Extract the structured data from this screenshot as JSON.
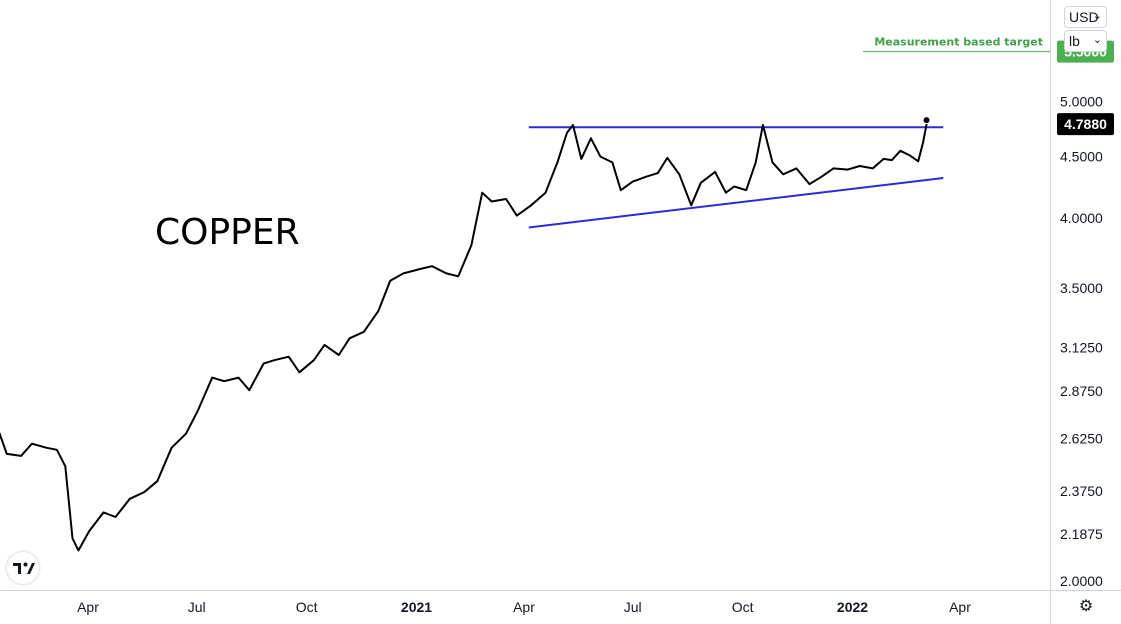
{
  "chart_data": {
    "type": "line",
    "title": "COPPER",
    "y_scale": "log",
    "ylim": [
      2.0,
      5.65
    ],
    "y_ticks": [
      "2.0000",
      "2.1875",
      "2.3750",
      "2.6250",
      "2.8750",
      "3.1250",
      "3.5000",
      "4.0000",
      "4.5000",
      "5.0000"
    ],
    "x_ticks": [
      {
        "label": "Apr",
        "bold": false
      },
      {
        "label": "Jul",
        "bold": false
      },
      {
        "label": "Oct",
        "bold": false
      },
      {
        "label": "2021",
        "bold": true
      },
      {
        "label": "Apr",
        "bold": false
      },
      {
        "label": "Jul",
        "bold": false
      },
      {
        "label": "Oct",
        "bold": false
      },
      {
        "label": "2022",
        "bold": true
      },
      {
        "label": "Apr",
        "bold": false
      }
    ],
    "last_value": "4.7880",
    "target_value": "5.5000",
    "target_label": "Measurement based target",
    "series": [
      {
        "color": "#000000",
        "points": [
          [
            "2020-01-02",
            2.86
          ],
          [
            "2020-01-14",
            2.72
          ],
          [
            "2020-01-24",
            2.55
          ],
          [
            "2020-02-05",
            2.54
          ],
          [
            "2020-02-14",
            2.6
          ],
          [
            "2020-02-26",
            2.58
          ],
          [
            "2020-03-06",
            2.57
          ],
          [
            "2020-03-13",
            2.49
          ],
          [
            "2020-03-19",
            2.17
          ],
          [
            "2020-03-24",
            2.12
          ],
          [
            "2020-04-02",
            2.2
          ],
          [
            "2020-04-14",
            2.28
          ],
          [
            "2020-04-24",
            2.26
          ],
          [
            "2020-05-06",
            2.34
          ],
          [
            "2020-05-18",
            2.37
          ],
          [
            "2020-05-29",
            2.42
          ],
          [
            "2020-06-10",
            2.58
          ],
          [
            "2020-06-22",
            2.65
          ],
          [
            "2020-07-02",
            2.77
          ],
          [
            "2020-07-14",
            2.95
          ],
          [
            "2020-07-24",
            2.93
          ],
          [
            "2020-08-05",
            2.95
          ],
          [
            "2020-08-14",
            2.88
          ],
          [
            "2020-08-26",
            3.03
          ],
          [
            "2020-09-04",
            3.05
          ],
          [
            "2020-09-16",
            3.07
          ],
          [
            "2020-09-25",
            2.98
          ],
          [
            "2020-10-07",
            3.05
          ],
          [
            "2020-10-16",
            3.14
          ],
          [
            "2020-10-28",
            3.08
          ],
          [
            "2020-11-06",
            3.18
          ],
          [
            "2020-11-18",
            3.22
          ],
          [
            "2020-11-30",
            3.35
          ],
          [
            "2020-12-10",
            3.55
          ],
          [
            "2020-12-21",
            3.6
          ],
          [
            "2021-01-04",
            3.63
          ],
          [
            "2021-01-14",
            3.65
          ],
          [
            "2021-01-26",
            3.6
          ],
          [
            "2021-02-05",
            3.58
          ],
          [
            "2021-02-16",
            3.8
          ],
          [
            "2021-02-25",
            4.2
          ],
          [
            "2021-03-05",
            4.13
          ],
          [
            "2021-03-17",
            4.15
          ],
          [
            "2021-03-26",
            4.02
          ],
          [
            "2021-04-07",
            4.1
          ],
          [
            "2021-04-19",
            4.2
          ],
          [
            "2021-04-29",
            4.45
          ],
          [
            "2021-05-07",
            4.71
          ],
          [
            "2021-05-12",
            4.78
          ],
          [
            "2021-05-19",
            4.48
          ],
          [
            "2021-05-27",
            4.66
          ],
          [
            "2021-06-04",
            4.5
          ],
          [
            "2021-06-14",
            4.45
          ],
          [
            "2021-06-21",
            4.22
          ],
          [
            "2021-07-01",
            4.29
          ],
          [
            "2021-07-12",
            4.33
          ],
          [
            "2021-07-22",
            4.36
          ],
          [
            "2021-07-30",
            4.49
          ],
          [
            "2021-08-09",
            4.35
          ],
          [
            "2021-08-19",
            4.1
          ],
          [
            "2021-08-27",
            4.28
          ],
          [
            "2021-09-08",
            4.37
          ],
          [
            "2021-09-17",
            4.2
          ],
          [
            "2021-09-24",
            4.25
          ],
          [
            "2021-10-04",
            4.22
          ],
          [
            "2021-10-12",
            4.45
          ],
          [
            "2021-10-18",
            4.78
          ],
          [
            "2021-10-26",
            4.45
          ],
          [
            "2021-11-04",
            4.35
          ],
          [
            "2021-11-15",
            4.4
          ],
          [
            "2021-11-26",
            4.27
          ],
          [
            "2021-12-06",
            4.33
          ],
          [
            "2021-12-16",
            4.4
          ],
          [
            "2021-12-28",
            4.39
          ],
          [
            "2022-01-07",
            4.42
          ],
          [
            "2022-01-18",
            4.4
          ],
          [
            "2022-01-27",
            4.48
          ],
          [
            "2022-02-03",
            4.47
          ],
          [
            "2022-02-10",
            4.55
          ],
          [
            "2022-02-18",
            4.51
          ],
          [
            "2022-02-25",
            4.46
          ],
          [
            "2022-03-01",
            4.62
          ],
          [
            "2022-03-04",
            4.788
          ]
        ]
      }
    ],
    "trendlines": [
      {
        "name": "resistance",
        "color": "#2d2bd8",
        "points": [
          [
            "2021-04-05",
            4.76
          ],
          [
            "2022-03-18",
            4.76
          ]
        ]
      },
      {
        "name": "support",
        "color": "#2d2bd8",
        "points": [
          [
            "2021-04-05",
            3.93
          ],
          [
            "2022-03-18",
            4.32
          ]
        ]
      }
    ]
  },
  "toolbar": {
    "currency": "USD",
    "unit": "lb",
    "settings_icon": "gear-icon",
    "logo_icon": "tradingview-logo-icon"
  },
  "colors": {
    "badge_last": "#000000",
    "badge_target": "#4caf50",
    "target_line": "#4caf50"
  }
}
